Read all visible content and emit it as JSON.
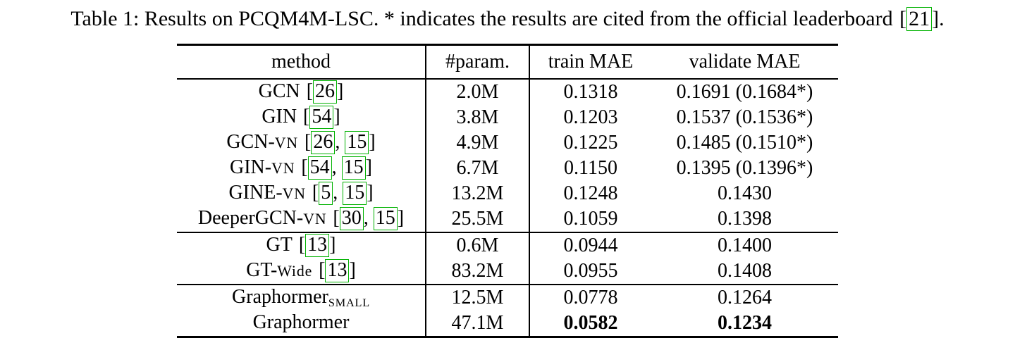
{
  "caption": {
    "pre": "Table 1: Results on PCQM4M-LSC. *  indicates the results are cited from the official leaderboard",
    "cites": [
      "21"
    ],
    "post": "."
  },
  "colors": {
    "cite_box": "#00b200",
    "text": "#000000",
    "background": "#ffffff"
  },
  "table": {
    "headers": [
      "method",
      "#param.",
      "train MAE",
      "validate MAE"
    ],
    "rows": [
      {
        "method": {
          "name": "GCN",
          "variant": "",
          "sub": "",
          "cites": [
            "26"
          ]
        },
        "param": "2.0M",
        "train": "0.1318",
        "validate": "0.1691 (0.1684*)"
      },
      {
        "method": {
          "name": "GIN",
          "variant": "",
          "sub": "",
          "cites": [
            "54"
          ]
        },
        "param": "3.8M",
        "train": "0.1203",
        "validate": "0.1537 (0.1536*)"
      },
      {
        "method": {
          "name": "GCN-",
          "variant": "VN",
          "sub": "",
          "cites": [
            "26",
            "15"
          ]
        },
        "param": "4.9M",
        "train": "0.1225",
        "validate": "0.1485 (0.1510*)"
      },
      {
        "method": {
          "name": "GIN-",
          "variant": "VN",
          "sub": "",
          "cites": [
            "54",
            "15"
          ]
        },
        "param": "6.7M",
        "train": "0.1150",
        "validate": "0.1395 (0.1396*)"
      },
      {
        "method": {
          "name": "GINE-",
          "variant": "VN",
          "sub": "",
          "cites": [
            "5",
            "15"
          ]
        },
        "param": "13.2M",
        "train": "0.1248",
        "validate": "0.1430"
      },
      {
        "method": {
          "name": "DeeperGCN-",
          "variant": "VN",
          "sub": "",
          "cites": [
            "30",
            "15"
          ]
        },
        "param": "25.5M",
        "train": "0.1059",
        "validate": "0.1398"
      },
      {
        "method": {
          "name": "GT",
          "variant": "",
          "sub": "",
          "cites": [
            "13"
          ]
        },
        "param": "0.6M",
        "train": "0.0944",
        "validate": "0.1400"
      },
      {
        "method": {
          "name": "GT-",
          "variant": "Wide",
          "sub": "",
          "cites": [
            "13"
          ]
        },
        "param": "83.2M",
        "train": "0.0955",
        "validate": "0.1408"
      },
      {
        "method": {
          "name": "Graphormer",
          "variant": "",
          "sub": "SMALL",
          "cites": []
        },
        "param": "12.5M",
        "train": "0.0778",
        "validate": "0.1264"
      },
      {
        "method": {
          "name": "Graphormer",
          "variant": "",
          "sub": "",
          "cites": []
        },
        "param": "47.1M",
        "train": "0.0582",
        "validate": "0.1234"
      }
    ]
  }
}
